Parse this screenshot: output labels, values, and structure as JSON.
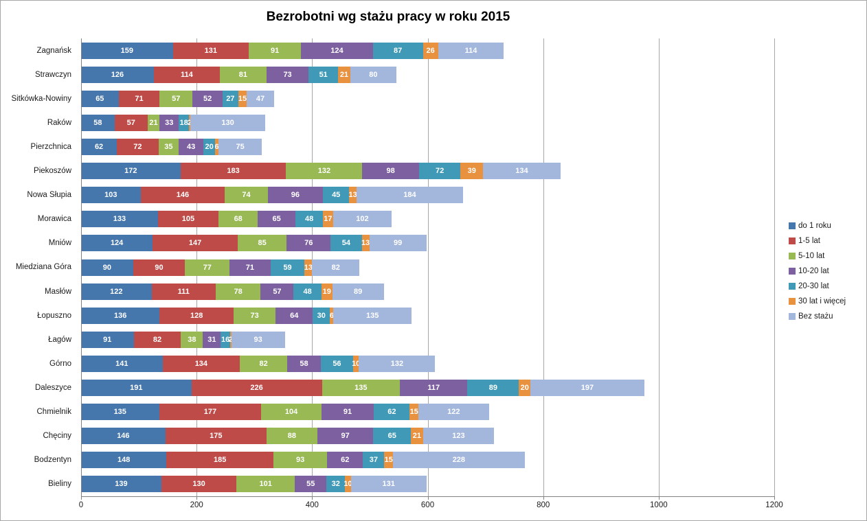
{
  "chart_data": {
    "type": "bar",
    "orientation": "horizontal",
    "stacked": true,
    "title": "Bezrobotni wg stażu pracy w roku 2015",
    "categories_order": "top-to-bottom",
    "categories": [
      "Zagnańsk",
      "Strawczyn",
      "Sitkówka-Nowiny",
      "Raków",
      "Pierzchnica",
      "Piekoszów",
      "Nowa Słupia",
      "Morawica",
      "Mniów",
      "Miedziana Góra",
      "Masłów",
      "Łopuszno",
      "Łagów",
      "Górno",
      "Daleszyce",
      "Chmielnik",
      "Chęciny",
      "Bodzentyn",
      "Bieliny"
    ],
    "series": [
      {
        "name": "do 1 roku",
        "color": "#4576AC",
        "values": [
          159,
          126,
          65,
          58,
          62,
          172,
          103,
          133,
          124,
          90,
          122,
          136,
          91,
          141,
          191,
          135,
          146,
          148,
          139
        ]
      },
      {
        "name": "1-5 lat",
        "color": "#BE4B48",
        "values": [
          131,
          114,
          71,
          57,
          72,
          183,
          146,
          105,
          147,
          90,
          111,
          128,
          82,
          134,
          226,
          177,
          175,
          185,
          130
        ]
      },
      {
        "name": "5-10 lat",
        "color": "#98B954",
        "values": [
          91,
          81,
          57,
          21,
          35,
          132,
          74,
          68,
          85,
          77,
          78,
          73,
          38,
          82,
          135,
          104,
          88,
          93,
          101
        ]
      },
      {
        "name": "10-20 lat",
        "color": "#7D60A0",
        "values": [
          124,
          73,
          52,
          33,
          43,
          98,
          96,
          65,
          76,
          71,
          57,
          64,
          31,
          58,
          117,
          91,
          97,
          62,
          55
        ]
      },
      {
        "name": "20-30 lat",
        "color": "#3F99B7",
        "values": [
          87,
          51,
          27,
          18,
          20,
          72,
          45,
          48,
          54,
          59,
          48,
          30,
          16,
          56,
          89,
          62,
          65,
          37,
          32
        ]
      },
      {
        "name": "30 lat i więcej",
        "color": "#E8913F",
        "values": [
          26,
          21,
          15,
          2,
          6,
          39,
          13,
          17,
          13,
          13,
          19,
          6,
          2,
          10,
          20,
          15,
          21,
          15,
          10
        ]
      },
      {
        "name": "Bez stażu",
        "color": "#A3B6DC",
        "values": [
          114,
          80,
          47,
          130,
          75,
          134,
          184,
          102,
          99,
          82,
          89,
          135,
          93,
          132,
          197,
          122,
          123,
          228,
          131
        ]
      }
    ],
    "x_ticks": [
      0,
      200,
      400,
      600,
      800,
      1000,
      1200
    ],
    "xlim": [
      0,
      1200
    ],
    "xlabel": "",
    "ylabel": "",
    "grid": "vertical",
    "legend_position": "right",
    "value_labels": "white bold numbers inside each segment"
  }
}
